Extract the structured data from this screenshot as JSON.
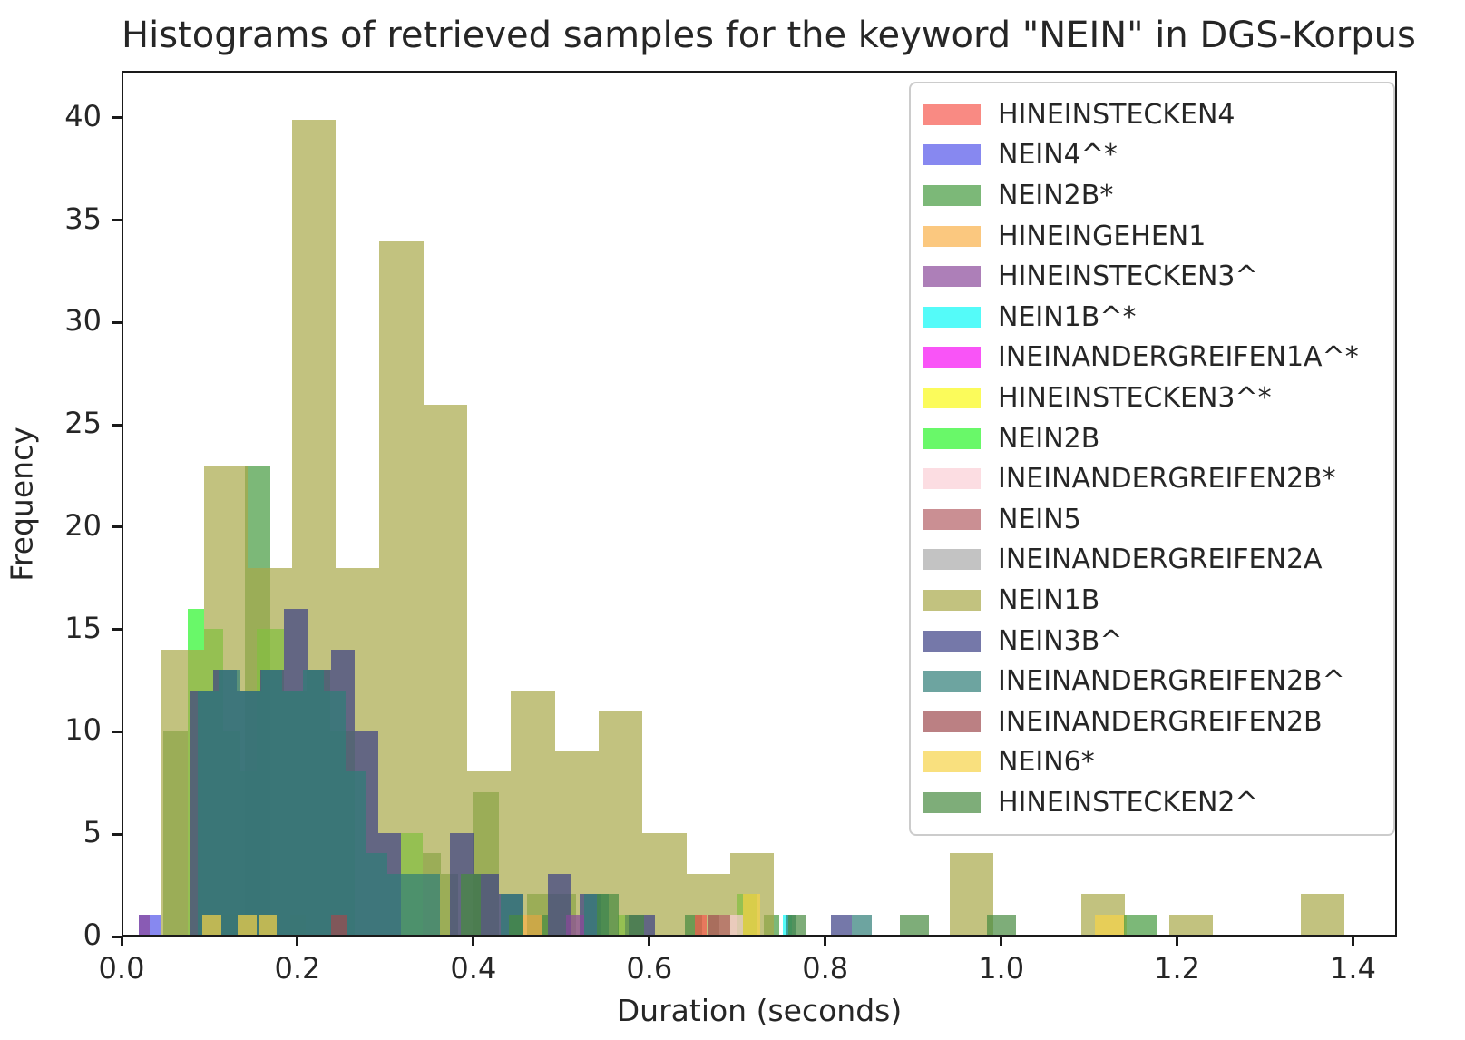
{
  "figure": {
    "title": "Histograms of retrieved samples for the keyword \"NEIN\" in DGS-Korpus",
    "xlabel": "Duration (seconds)",
    "ylabel": "Frequency"
  },
  "chart_data": {
    "type": "bar",
    "subtype": "overlapping-histograms",
    "title": "Histograms of retrieved samples for the keyword \"NEIN\" in DGS-Korpus",
    "xlabel": "Duration (seconds)",
    "ylabel": "Frequency",
    "xlim": [
      0,
      1.45
    ],
    "ylim": [
      0,
      42.3
    ],
    "xticks": [
      "0.0",
      "0.2",
      "0.4",
      "0.6",
      "0.8",
      "1.0",
      "1.2",
      "1.4"
    ],
    "xtick_values": [
      0.0,
      0.2,
      0.4,
      0.6,
      0.8,
      1.0,
      1.2,
      1.4
    ],
    "yticks": [
      "0",
      "5",
      "10",
      "15",
      "20",
      "25",
      "30",
      "35",
      "40"
    ],
    "ytick_values": [
      0,
      5,
      10,
      15,
      20,
      25,
      30,
      35,
      40
    ],
    "grid": false,
    "legend_position": "upper right",
    "bar_alpha": 0.7,
    "frame_color": "#1a1a1a",
    "series": [
      {
        "name": "HINEINSTECKEN4",
        "color": "#f6584f",
        "bars": [
          [
            0.652,
            0.013,
            1,
            1
          ]
        ]
      },
      {
        "name": "NEIN4^*",
        "color": "#5456ea",
        "bars": [
          [
            0.018,
            0.024,
            1,
            0
          ]
        ]
      },
      {
        "name": "NEIN2B*",
        "color": "#449a3e",
        "bars": [
          [
            0.046,
            0.027,
            10,
            0
          ],
          [
            0.139,
            0.029,
            23,
            0
          ],
          [
            0.341,
            0.021,
            4,
            0
          ],
          [
            0.362,
            0.02,
            3,
            0
          ],
          [
            0.398,
            0.03,
            7,
            0
          ],
          [
            0.46,
            0.028,
            2,
            0
          ],
          [
            0.488,
            0.028,
            2,
            0
          ],
          [
            0.73,
            0.018,
            1,
            0
          ],
          [
            1.141,
            0.037,
            1,
            1
          ]
        ]
      },
      {
        "name": "HINEINGEHEN1",
        "color": "#f9b048",
        "bars": [
          [
            0.455,
            0.022,
            1,
            1
          ]
        ]
      },
      {
        "name": "HINEINSTECKEN3^",
        "color": "#8a489a",
        "bars": [
          [
            0.018,
            0.012,
            1,
            0
          ],
          [
            0.505,
            0.02,
            1,
            1
          ]
        ]
      },
      {
        "name": "NEIN1B^*",
        "color": "#0cf9f6",
        "bars": [
          [
            0.168,
            0.009,
            1,
            0
          ],
          [
            0.752,
            0.01,
            1,
            0
          ]
        ]
      },
      {
        "name": "INEINANDERGREIFEN1A^*",
        "color": "#f60cf3",
        "bars": []
      },
      {
        "name": "HINEINSTECKEN3^*",
        "color": "#f9f915",
        "bars": [
          [
            0.112,
            0.018,
            1,
            0
          ],
          [
            0.19,
            0.018,
            1,
            0
          ]
        ]
      },
      {
        "name": "NEIN2B",
        "color": "#2af52a",
        "bars": [
          [
            0.073,
            0.019,
            16,
            0
          ],
          [
            0.092,
            0.022,
            15,
            0
          ],
          [
            0.114,
            0.019,
            10,
            0
          ],
          [
            0.133,
            0.019,
            8,
            0
          ],
          [
            0.152,
            0.031,
            15,
            0
          ],
          [
            0.183,
            0.026,
            12,
            0
          ],
          [
            0.209,
            0.027,
            13,
            0
          ],
          [
            0.236,
            0.028,
            10,
            0
          ],
          [
            0.316,
            0.025,
            5,
            0
          ],
          [
            0.564,
            0.008,
            1,
            0
          ],
          [
            0.7,
            0.022,
            2,
            0
          ]
        ]
      },
      {
        "name": "INEINANDERGREIFEN2B*",
        "color": "#fbced5",
        "bars": [
          [
            0.692,
            0.014,
            1,
            1
          ]
        ]
      },
      {
        "name": "NEIN5",
        "color": "#b35f65",
        "bars": [
          [
            0.679,
            0.013,
            1,
            1
          ]
        ]
      },
      {
        "name": "INEINANDERGREIFEN2A",
        "color": "#a9a9a9",
        "bars": []
      },
      {
        "name": "NEIN1B",
        "color": "#a8a848",
        "bars": [
          [
            0.042,
            0.05,
            14,
            0
          ],
          [
            0.092,
            0.05,
            23,
            0
          ],
          [
            0.142,
            0.05,
            18,
            0
          ],
          [
            0.192,
            0.05,
            40,
            0
          ],
          [
            0.242,
            0.05,
            18,
            0
          ],
          [
            0.292,
            0.05,
            34,
            0
          ],
          [
            0.342,
            0.05,
            26,
            0
          ],
          [
            0.392,
            0.05,
            8,
            0
          ],
          [
            0.442,
            0.05,
            12,
            0
          ],
          [
            0.492,
            0.05,
            9,
            0
          ],
          [
            0.542,
            0.05,
            11,
            0
          ],
          [
            0.592,
            0.05,
            5,
            0
          ],
          [
            0.642,
            0.05,
            3,
            0
          ],
          [
            0.692,
            0.05,
            4,
            0
          ],
          [
            0.942,
            0.05,
            4,
            0
          ],
          [
            1.092,
            0.05,
            2,
            0
          ],
          [
            1.192,
            0.05,
            1,
            0
          ],
          [
            1.342,
            0.05,
            2,
            0
          ]
        ]
      },
      {
        "name": "NEIN3B^",
        "color": "#3a3f85",
        "bars": [
          [
            0.075,
            0.027,
            12,
            0
          ],
          [
            0.102,
            0.027,
            13,
            0
          ],
          [
            0.129,
            0.027,
            12,
            0
          ],
          [
            0.156,
            0.027,
            13,
            0
          ],
          [
            0.183,
            0.027,
            16,
            0
          ],
          [
            0.21,
            0.027,
            13,
            0
          ],
          [
            0.237,
            0.027,
            14,
            0
          ],
          [
            0.264,
            0.027,
            10,
            0
          ],
          [
            0.291,
            0.025,
            5,
            0
          ],
          [
            0.372,
            0.028,
            5,
            0
          ],
          [
            0.4,
            0.028,
            3,
            0
          ],
          [
            0.428,
            0.027,
            2,
            0
          ],
          [
            0.484,
            0.026,
            3,
            0
          ],
          [
            0.52,
            0.025,
            2,
            0
          ],
          [
            0.576,
            0.03,
            1,
            0
          ],
          [
            0.807,
            0.024,
            1,
            0
          ]
        ]
      },
      {
        "name": "INEINANDERGREIFEN2B^",
        "color": "#2f7d77",
        "bars": [
          [
            0.085,
            0.024,
            12,
            0
          ],
          [
            0.109,
            0.024,
            13,
            0
          ],
          [
            0.133,
            0.024,
            12,
            0
          ],
          [
            0.157,
            0.024,
            13,
            0
          ],
          [
            0.181,
            0.024,
            12,
            0
          ],
          [
            0.205,
            0.024,
            13,
            0
          ],
          [
            0.229,
            0.024,
            12,
            0
          ],
          [
            0.253,
            0.024,
            8,
            0
          ],
          [
            0.277,
            0.024,
            4,
            0
          ],
          [
            0.301,
            0.03,
            3,
            0
          ],
          [
            0.331,
            0.03,
            3,
            0
          ],
          [
            0.43,
            0.025,
            2,
            0
          ],
          [
            0.525,
            0.028,
            2,
            0
          ],
          [
            0.755,
            0.012,
            1,
            0
          ],
          [
            0.831,
            0.022,
            1,
            0
          ]
        ]
      },
      {
        "name": "INEINANDERGREIFEN2B",
        "color": "#9e4a4e",
        "bars": [
          [
            0.237,
            0.018,
            1,
            1
          ],
          [
            0.666,
            0.013,
            1,
            1
          ]
        ]
      },
      {
        "name": "NEIN6*",
        "color": "#f6d347",
        "bars": [
          [
            0.09,
            0.022,
            1,
            0
          ],
          [
            0.13,
            0.022,
            1,
            0
          ],
          [
            0.155,
            0.02,
            1,
            0
          ],
          [
            0.706,
            0.02,
            2,
            0
          ],
          [
            1.108,
            0.036,
            1,
            0
          ]
        ]
      },
      {
        "name": "HINEINSTECKEN2^",
        "color": "#478a40",
        "bars": [
          [
            0.385,
            0.022,
            3,
            0
          ],
          [
            0.44,
            0.015,
            1,
            0
          ],
          [
            0.46,
            0.024,
            1,
            0
          ],
          [
            0.54,
            0.025,
            2,
            0
          ],
          [
            0.572,
            0.022,
            1,
            0
          ],
          [
            0.64,
            0.02,
            1,
            0
          ],
          [
            0.758,
            0.02,
            1,
            0
          ],
          [
            0.885,
            0.033,
            1,
            0
          ],
          [
            0.985,
            0.033,
            1,
            0
          ]
        ]
      }
    ]
  }
}
